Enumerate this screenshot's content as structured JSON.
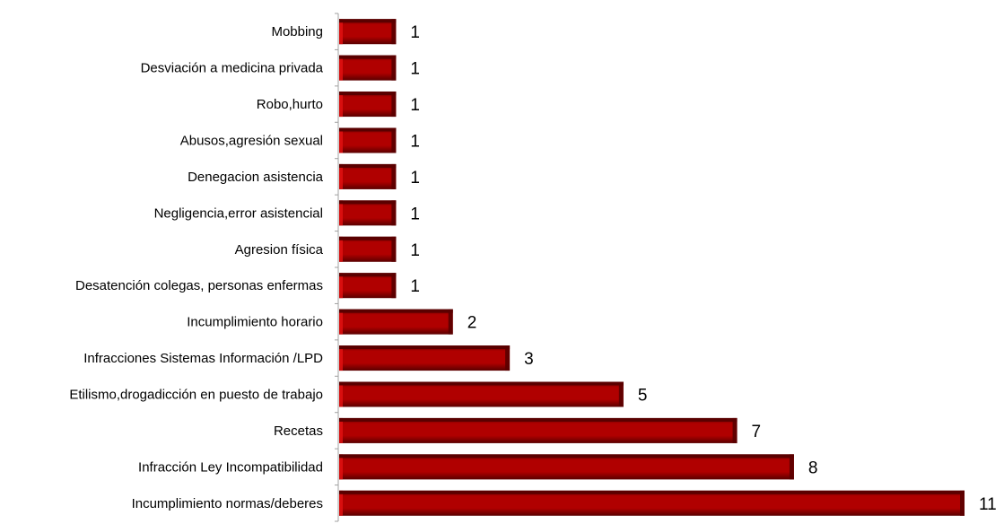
{
  "chart_data": {
    "type": "bar",
    "orientation": "horizontal",
    "title": "",
    "xlabel": "",
    "ylabel": "",
    "categories": [
      "Mobbing",
      "Desviación a medicina privada",
      "Robo,hurto",
      "Abusos,agresión sexual",
      "Denegacion asistencia",
      "Negligencia,error asistencial",
      "Agresion física",
      "Desatención colegas, personas enfermas",
      "Incumplimiento horario",
      "Infracciones Sistemas Información /LPD",
      "Etilismo,drogadicción en puesto de trabajo",
      "Recetas",
      "Infracción Ley Incompatibilidad",
      "Incumplimiento normas/deberes"
    ],
    "values": [
      1,
      1,
      1,
      1,
      1,
      1,
      1,
      1,
      2,
      3,
      5,
      7,
      8,
      11
    ],
    "value_labels": [
      "1",
      "1",
      "1",
      "1",
      "1",
      "1",
      "1",
      "1",
      "2",
      "3",
      "5",
      "7",
      "8",
      "11"
    ],
    "xlim": [
      0,
      11
    ],
    "grid": false,
    "legend": "none",
    "bar_color": "#b00000",
    "bar_dark_color": "#5a0000",
    "bar_light_color": "#e01010",
    "axis_color": "#a0a0a0"
  }
}
